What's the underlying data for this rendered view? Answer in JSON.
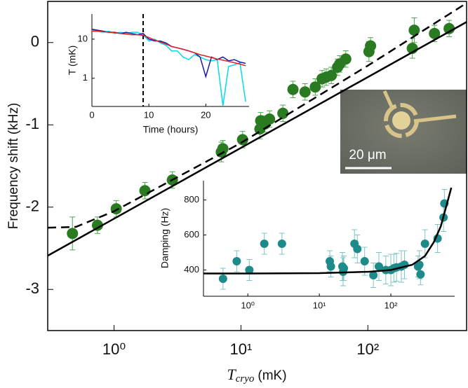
{
  "chart_data": [
    {
      "type": "scatter",
      "ylabel": "Frequency shift (kHz)",
      "xlabel": {
        "symbol": "T",
        "subscript": "cryo",
        "unit": "(mK)"
      },
      "xscale": "log",
      "xlim": [
        0.3,
        600
      ],
      "ylim": [
        -3.5,
        0.5
      ],
      "box": true,
      "xticks": [
        {
          "value": 1,
          "label": "10⁰"
        },
        {
          "value": 10,
          "label": "10¹"
        },
        {
          "value": 100,
          "label": "10²"
        }
      ],
      "yticks": [
        0,
        -1,
        -2,
        -3
      ],
      "annotation": "20 μm",
      "series": [
        {
          "type": "scatter",
          "color": "#2a7a22",
          "error_color": "#4aa84a",
          "x": [
            0.47,
            0.74,
            1.04,
            1.75,
            2.88,
            7.0,
            7.2,
            10.3,
            14.1,
            14.3,
            15.4,
            16.8,
            21.4,
            25.7,
            32,
            38.5,
            43.6,
            47,
            51.5,
            57.7,
            60,
            67,
            102,
            105,
            224,
            232,
            335,
            437
          ],
          "values": [
            -2.32,
            -2.22,
            -2.02,
            -1.8,
            -1.67,
            -1.33,
            -1.29,
            -1.18,
            -1.05,
            -0.95,
            -0.99,
            -0.93,
            -0.86,
            -0.57,
            -0.6,
            -0.54,
            -0.44,
            -0.42,
            -0.4,
            -0.3,
            -0.26,
            -0.2,
            -0.11,
            -0.04,
            -0.07,
            0.15,
            0.11,
            0.17
          ],
          "y_errors": [
            0.2,
            0.1,
            0.1,
            0.1,
            0.1,
            0.12,
            0.1,
            0.1,
            0.12,
            0.1,
            0.1,
            0.1,
            0.1,
            0.1,
            0.1,
            0.1,
            0.1,
            0.1,
            0.1,
            0.1,
            0.1,
            0.1,
            0.12,
            0.1,
            0.12,
            0.15,
            0.1,
            0.1
          ]
        },
        {
          "type": "line",
          "color": "#000000",
          "style": "solid",
          "x": [
            0.3,
            600
          ],
          "values": [
            -2.59,
            0.25
          ]
        },
        {
          "type": "line",
          "color": "#000000",
          "style": "dashed",
          "x": [
            0.3,
            0.5,
            1,
            10,
            100,
            600
          ],
          "values": [
            -2.25,
            -2.24,
            -2.05,
            -1.22,
            -0.28,
            0.48
          ]
        }
      ]
    },
    {
      "type": "line",
      "xlabel": "Time (hours)",
      "ylabel": "T (mK)",
      "xlim": [
        0,
        27.6
      ],
      "yscale": "log",
      "ylim": [
        0.19,
        44
      ],
      "xticks": [
        0,
        10,
        20
      ],
      "yticks": [
        1,
        10
      ],
      "vline": 9,
      "series": [
        {
          "type": "line",
          "color": "#00dcea",
          "style": "solid",
          "x": [
            0,
            1,
            2,
            3,
            4,
            5,
            6,
            7,
            8,
            9,
            10,
            11,
            12,
            13,
            14,
            15,
            16,
            17,
            18,
            19,
            20,
            21,
            22,
            23,
            24,
            25,
            26,
            27
          ],
          "values": [
            17,
            16,
            15,
            16,
            14,
            15,
            14,
            15,
            15,
            13,
            9,
            10,
            8,
            7,
            5,
            5,
            3.5,
            3,
            4,
            3.5,
            3,
            2.8,
            3,
            0.2,
            2,
            2.2,
            2.5,
            0.25
          ]
        },
        {
          "type": "line",
          "color": "#1a1aa8",
          "style": "solid",
          "x": [
            0,
            1,
            2,
            3,
            4,
            5,
            6,
            7,
            8,
            9,
            10,
            11,
            12,
            13,
            14,
            15,
            16,
            17,
            18,
            19,
            20,
            21,
            22,
            23,
            24,
            25,
            26,
            27
          ],
          "values": [
            18,
            17,
            16,
            15,
            15,
            14,
            15,
            14,
            13,
            14,
            10,
            9,
            9,
            8,
            6.5,
            6,
            5.5,
            5,
            4.5,
            3.5,
            1.1,
            3.5,
            3,
            3.5,
            2.8,
            3,
            2.6,
            2.4
          ]
        },
        {
          "type": "line",
          "color": "#e0202a",
          "style": "solid",
          "x": [
            0,
            1,
            2,
            3,
            4,
            5,
            6,
            7,
            8,
            9,
            10,
            11,
            12,
            13,
            14,
            15,
            16,
            17,
            18,
            19,
            20,
            21,
            22,
            23,
            24,
            25,
            26,
            27
          ],
          "values": [
            16,
            16,
            15.5,
            15,
            14.5,
            14,
            13.5,
            13,
            13,
            12.5,
            11,
            9.5,
            8.5,
            7.5,
            6.5,
            6,
            5.5,
            5,
            4.5,
            4,
            3.7,
            3.4,
            3.1,
            2.9,
            2.7,
            2.5,
            2.3,
            2.1
          ]
        }
      ]
    },
    {
      "type": "scatter",
      "ylabel": "Damping (Hz)",
      "xscale": "log",
      "xlim": [
        0.24,
        780
      ],
      "ylim": [
        250,
        910
      ],
      "xticks": [
        {
          "value": 1,
          "label": "10⁰"
        },
        {
          "value": 10,
          "label": "10¹"
        },
        {
          "value": 100,
          "label": "10²"
        }
      ],
      "yticks": [
        400,
        600,
        800
      ],
      "series": [
        {
          "type": "scatter",
          "color": "#1f8a8a",
          "error_color": "#7fc4c4",
          "x": [
            0.45,
            0.7,
            1.05,
            1.7,
            3,
            14,
            14.5,
            21,
            21.5,
            22,
            31,
            34,
            43,
            57,
            68,
            85,
            100,
            110,
            120,
            140,
            155,
            240,
            250,
            260,
            300,
            450,
            545,
            560
          ],
          "values": [
            350,
            450,
            400,
            550,
            550,
            450,
            420,
            420,
            390,
            410,
            550,
            520,
            450,
            370,
            420,
            400,
            400,
            410,
            415,
            420,
            430,
            420,
            430,
            375,
            550,
            580,
            700,
            780
          ],
          "y_errors": [
            60,
            60,
            60,
            60,
            60,
            60,
            60,
            80,
            80,
            70,
            80,
            80,
            80,
            70,
            80,
            80,
            90,
            80,
            80,
            90,
            80,
            60,
            80,
            60,
            80,
            80,
            80,
            80
          ]
        },
        {
          "type": "line",
          "color": "#000000",
          "style": "solid",
          "x": [
            0.24,
            1,
            10,
            50,
            100,
            200,
            300,
            400,
            500,
            620,
            700
          ],
          "values": [
            380,
            380,
            382,
            390,
            400,
            430,
            480,
            560,
            650,
            790,
            870
          ]
        }
      ]
    }
  ]
}
